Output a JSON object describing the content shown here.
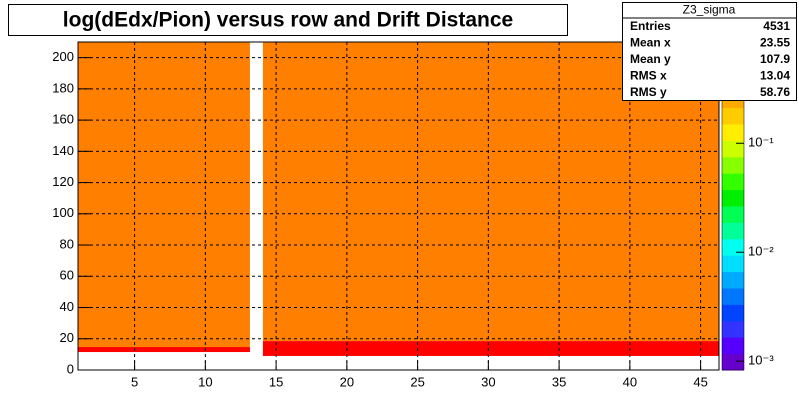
{
  "chart_data": {
    "type": "heatmap",
    "title": "log(dEdx/Pion) versus row and Drift Distance",
    "xlim": [
      1,
      46.3
    ],
    "ylim": [
      0,
      210
    ],
    "xticks": [
      5,
      10,
      15,
      20,
      25,
      30,
      35,
      40,
      45
    ],
    "yticks": [
      0,
      20,
      40,
      60,
      80,
      100,
      120,
      140,
      160,
      180,
      200
    ],
    "grid": true,
    "zlog": true,
    "zlim": [
      0.00083,
      0.85
    ],
    "zticks": [
      {
        "value": 0.001,
        "label": "10⁻³"
      },
      {
        "value": 0.01,
        "label": "10⁻²"
      },
      {
        "value": 0.1,
        "label": "10⁻¹"
      }
    ],
    "palette": [
      "#6600cc",
      "#5500ff",
      "#3333ff",
      "#0044ff",
      "#0077ff",
      "#00aaff",
      "#00ddff",
      "#00ffee",
      "#00ff99",
      "#00ff55",
      "#00ee00",
      "#33ff00",
      "#88ff00",
      "#ccff00",
      "#ffee00",
      "#ffcc00",
      "#ffaa00",
      "#ff7f00",
      "#ff4400",
      "#ff0000"
    ],
    "cells": [
      {
        "x0": 1,
        "x1": 13.15,
        "y0": 14.7,
        "y1": 210,
        "z": 0.4
      },
      {
        "x0": 1,
        "x1": 13.15,
        "y0": 11.5,
        "y1": 14.7,
        "z": 0.8
      },
      {
        "x0": 14.07,
        "x1": 46.3,
        "y0": 18.5,
        "y1": 210,
        "z": 0.4
      },
      {
        "x0": 14.07,
        "x1": 46.3,
        "y0": 9,
        "y1": 18.5,
        "z": 0.8
      }
    ],
    "stats": {
      "title": "Z3_sigma",
      "rows": [
        [
          "Entries",
          4531
        ],
        [
          "Mean x",
          23.55
        ],
        [
          "Mean y",
          107.9
        ],
        [
          "RMS x",
          13.04
        ],
        [
          "RMS y",
          58.76
        ]
      ]
    }
  }
}
